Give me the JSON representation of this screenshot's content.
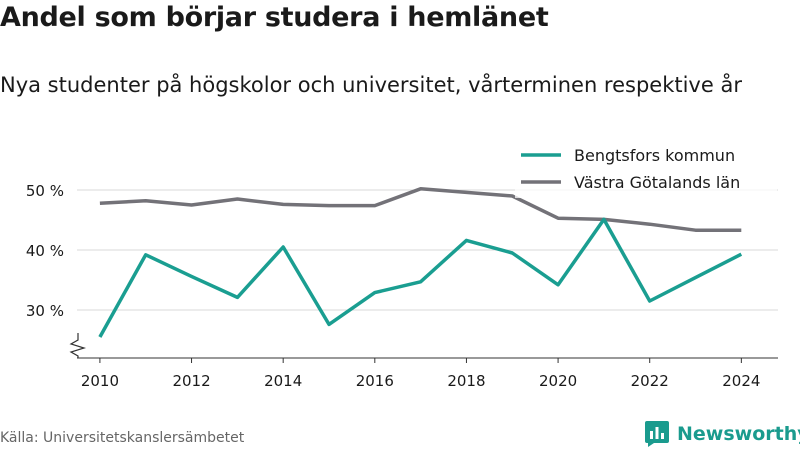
{
  "header": {
    "title": "Andel som börjar studera i hemlänet",
    "subtitle": "Nya studenter på högskolor och universitet, vårterminen respektive år"
  },
  "footer": {
    "source": "Källa: Universitetskanslersämbetet",
    "brand": "Newsworthy",
    "brand_icon": "bar-chart-icon"
  },
  "colors": {
    "accent": "#1a9e91",
    "secondary": "#737278",
    "grid": "#d9d9d9",
    "brand": "#1a9b8e"
  },
  "chart_data": {
    "type": "line",
    "x": [
      2010,
      2011,
      2012,
      2013,
      2014,
      2015,
      2016,
      2017,
      2018,
      2019,
      2020,
      2021,
      2022,
      2023,
      2024
    ],
    "series": [
      {
        "name": "Bengtsfors kommun",
        "color": "#1a9e91",
        "values": [
          25.5,
          39.2,
          35.6,
          32.1,
          40.5,
          27.6,
          32.9,
          34.7,
          41.6,
          39.5,
          34.2,
          45.1,
          31.5,
          35.4,
          39.3
        ]
      },
      {
        "name": "Västra Götalands län",
        "color": "#737278",
        "values": [
          47.8,
          48.2,
          47.5,
          48.5,
          47.6,
          47.4,
          47.4,
          50.2,
          49.6,
          49.0,
          45.3,
          45.1,
          44.3,
          43.3,
          43.3
        ]
      }
    ],
    "yticks": [
      30,
      40,
      50
    ],
    "ytick_labels": [
      "30 %",
      "40 %",
      "50 %"
    ],
    "xticks": [
      2010,
      2012,
      2014,
      2016,
      2018,
      2020,
      2022,
      2024
    ],
    "xtick_labels": [
      "2010",
      "2012",
      "2014",
      "2016",
      "2018",
      "2020",
      "2022",
      "2024"
    ],
    "ylim": [
      22,
      55
    ],
    "xlim": [
      2009.5,
      2024.8
    ],
    "grid": true,
    "axis_break": true,
    "legend_position": "top-right"
  }
}
